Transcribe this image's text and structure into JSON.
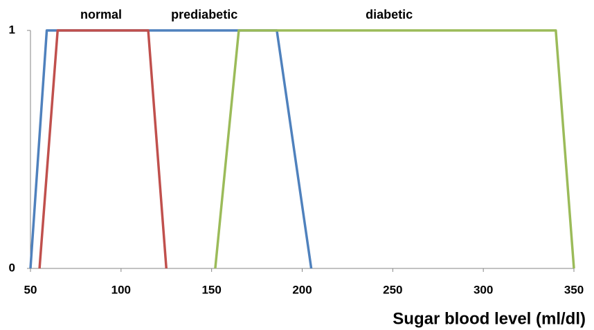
{
  "chart_data": {
    "type": "line",
    "xlabel": "Sugar blood level (ml/dl)",
    "xlim": [
      50,
      350
    ],
    "xticks": [
      50,
      100,
      150,
      200,
      250,
      300,
      350
    ],
    "ylim": [
      0,
      1
    ],
    "yticks": [
      0,
      1
    ],
    "grid": false,
    "series": [
      {
        "color": "#4f81bd",
        "x": [
          50,
          59,
          186,
          205
        ],
        "values": [
          0,
          1,
          1,
          0
        ]
      },
      {
        "color": "#c0504d",
        "x": [
          55,
          65,
          115,
          125
        ],
        "values": [
          0,
          1,
          1,
          0
        ]
      },
      {
        "color": "#9bbb59",
        "x": [
          152,
          165,
          340,
          350
        ],
        "values": [
          0,
          1,
          1,
          0
        ]
      }
    ],
    "annotations": [
      {
        "text": "normal",
        "x": 89
      },
      {
        "text": "prediabetic",
        "x": 146
      },
      {
        "text": "diabetic",
        "x": 248
      }
    ]
  }
}
